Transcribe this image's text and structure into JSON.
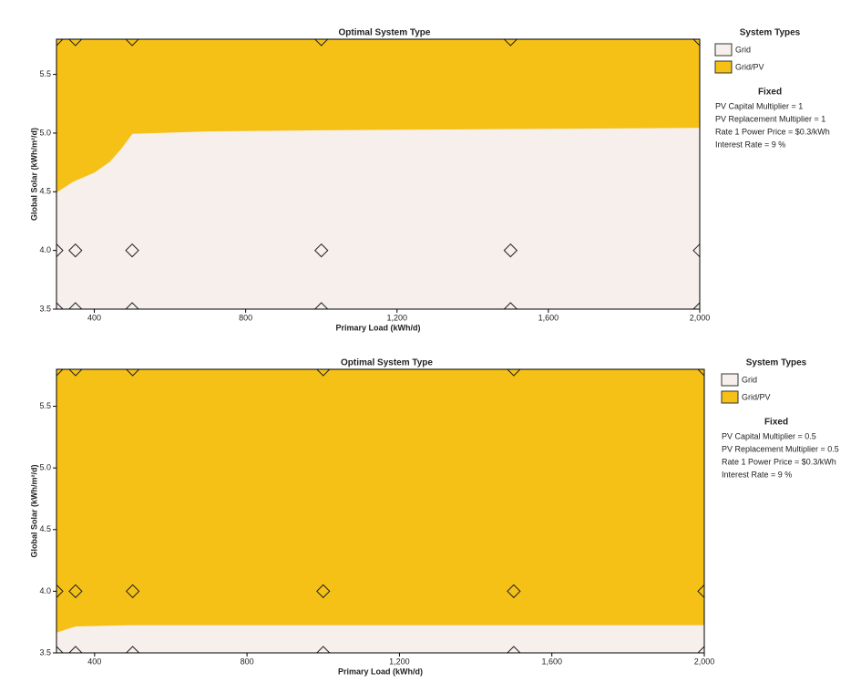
{
  "chart_data": [
    {
      "type": "region",
      "title": "Optimal System Type",
      "x_label": "Primary Load  (kWh/d)",
      "y_label": "Global Solar  (kWh/m²/d)",
      "xlim": [
        300,
        2000
      ],
      "ylim": [
        3.5,
        5.8
      ],
      "xticks": [
        400,
        800,
        {
          "value": 1200,
          "label": "1,200"
        },
        {
          "value": 1600,
          "label": "1,600"
        },
        {
          "value": 2000,
          "label": "2,000"
        }
      ],
      "yticks": [
        3.5,
        {
          "value": 4,
          "label": "4.0"
        },
        4.5,
        {
          "value": 5,
          "label": "5.0"
        },
        5.5
      ],
      "boundary_x": [
        300,
        343,
        400,
        440,
        470,
        500,
        700,
        1000,
        1500,
        2000
      ],
      "boundary_y": [
        4.5,
        4.59,
        4.67,
        4.76,
        4.87,
        5.0,
        5.02,
        5.03,
        5.04,
        5.05
      ],
      "point_x": [
        300,
        350,
        500,
        1000,
        1500,
        2000
      ],
      "point_y": [
        3.5,
        4.0,
        5.8
      ],
      "legend_title": "System Types",
      "legend": [
        {
          "name": "Grid",
          "color": "#f6efeb"
        },
        {
          "name": "Grid/PV",
          "color": "#f5c117"
        }
      ],
      "fixed_title": "Fixed",
      "fixed": [
        "PV Capital Multiplier = 1",
        "PV Replacement Multiplier = 1",
        "Rate 1 Power Price = $0.3/kWh",
        "Interest Rate = 9 %"
      ]
    },
    {
      "type": "region",
      "title": "Optimal System Type",
      "x_label": "Primary Load (kWh/d)",
      "y_label": "Global Solar  (kWh/m²/d)",
      "xlim": [
        300,
        2000
      ],
      "ylim": [
        3.5,
        5.8
      ],
      "xticks": [
        400,
        800,
        {
          "value": 1200,
          "label": "1,200"
        },
        {
          "value": 1600,
          "label": "1,600"
        },
        {
          "value": 2000,
          "label": "2,000"
        }
      ],
      "yticks": [
        3.5,
        {
          "value": 4,
          "label": "4.0"
        },
        4.5,
        {
          "value": 5,
          "label": "5.0"
        },
        5.5
      ],
      "boundary_x": [
        300,
        330,
        350,
        500,
        1000,
        1500,
        2000
      ],
      "boundary_y": [
        3.67,
        3.7,
        3.72,
        3.73,
        3.73,
        3.73,
        3.73
      ],
      "point_x": [
        300,
        350,
        500,
        1000,
        1500,
        2000
      ],
      "point_y": [
        3.5,
        4.0,
        5.8
      ],
      "legend_title": "System Types",
      "legend": [
        {
          "name": "Grid",
          "color": "#f6efeb"
        },
        {
          "name": "Grid/PV",
          "color": "#f5c117"
        }
      ],
      "fixed_title": "Fixed",
      "fixed": [
        "PV Capital Multiplier = 0.5",
        "PV Replacement Multiplier = 0.5",
        "Rate 1 Power Price = $0.3/kWh",
        "Interest Rate = 9 %"
      ]
    }
  ]
}
